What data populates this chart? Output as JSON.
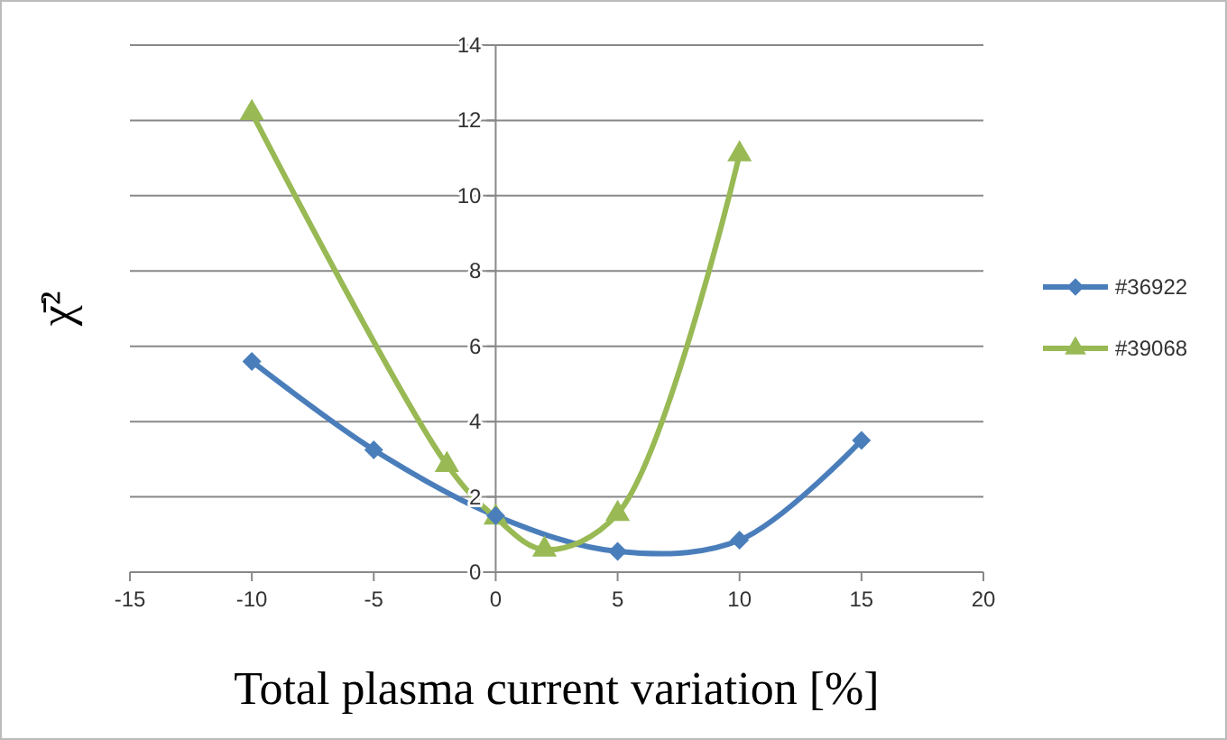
{
  "chart_data": {
    "type": "line",
    "xlabel": "Total plasma current variation [%]",
    "ylabel": "χ̄²",
    "xlim": [
      -15,
      20
    ],
    "xticks": [
      -15,
      -10,
      -5,
      0,
      5,
      10,
      15,
      20
    ],
    "ylim": [
      0,
      14
    ],
    "yticks": [
      0,
      2,
      4,
      6,
      8,
      10,
      12,
      14
    ],
    "grid": "y",
    "legend": "right",
    "line_style": "solid",
    "series": [
      {
        "name": "#36922",
        "color": "#4a7ebb",
        "marker": "diamond",
        "x": [
          -10,
          -5,
          0,
          5,
          10,
          15
        ],
        "values": [
          5.6,
          3.25,
          1.5,
          0.55,
          0.85,
          3.5
        ]
      },
      {
        "name": "#39068",
        "color": "#98b954",
        "marker": "triangle",
        "x": [
          -10,
          -2,
          0,
          2,
          5,
          10
        ],
        "values": [
          12.2,
          2.85,
          1.45,
          0.6,
          1.55,
          11.1
        ]
      }
    ]
  }
}
